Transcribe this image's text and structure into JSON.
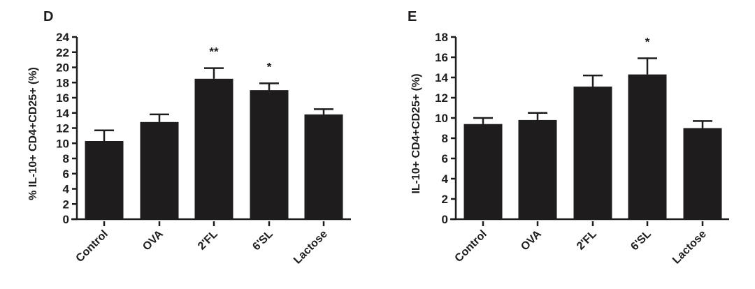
{
  "chart_data": [
    {
      "panel": "D",
      "type": "bar",
      "categories": [
        "Control",
        "OVA",
        "2'FL",
        "6'SL",
        "Lactose"
      ],
      "values": [
        10.3,
        12.8,
        18.5,
        17.0,
        13.8
      ],
      "error_upper": [
        11.7,
        13.8,
        19.9,
        17.9,
        14.5
      ],
      "significance": [
        "",
        "",
        "**",
        "*",
        ""
      ],
      "ylabel": "% IL-10+ CD4+CD25+ (%)",
      "xlabel": "",
      "ylim": [
        0,
        24
      ],
      "yticks": [
        0,
        2,
        4,
        6,
        8,
        10,
        12,
        14,
        16,
        18,
        20,
        22,
        24
      ],
      "grid": false,
      "bar_color": "#1e1c1d"
    },
    {
      "panel": "E",
      "type": "bar",
      "categories": [
        "Control",
        "OVA",
        "2'FL",
        "6'SL",
        "Lactose"
      ],
      "values": [
        9.4,
        9.8,
        13.1,
        14.3,
        9.0
      ],
      "error_upper": [
        10.0,
        10.5,
        14.2,
        15.9,
        9.7
      ],
      "significance": [
        "",
        "",
        "",
        "*",
        ""
      ],
      "ylabel": "IL-10+ CD4+CD25+ (%)",
      "xlabel": "",
      "ylim": [
        0,
        18
      ],
      "yticks": [
        0,
        2,
        4,
        6,
        8,
        10,
        12,
        14,
        16,
        18
      ],
      "grid": false,
      "bar_color": "#1e1c1d"
    }
  ]
}
